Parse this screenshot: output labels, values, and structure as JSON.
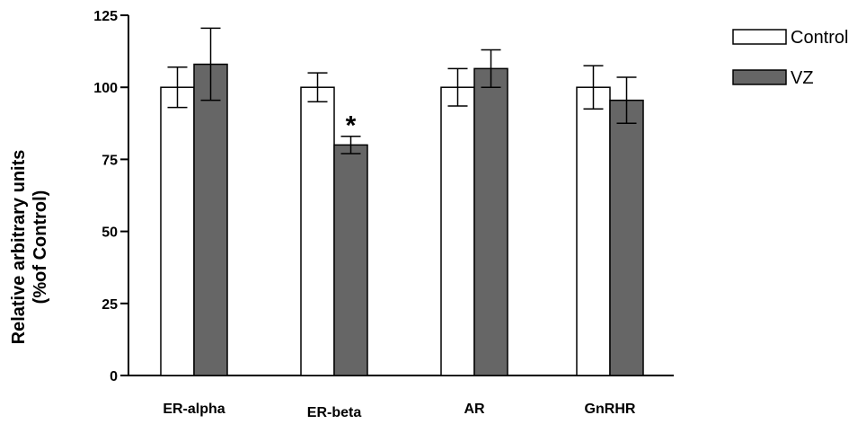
{
  "chart_data": {
    "type": "bar",
    "categories": [
      "ER-alpha",
      "ER-beta",
      "AR",
      "GnRHR"
    ],
    "series": [
      {
        "name": "Control",
        "color": "#ffffff",
        "values": [
          100,
          100,
          100,
          100
        ],
        "errors": [
          7,
          5,
          6.5,
          7.5
        ]
      },
      {
        "name": "VZ",
        "color": "#666666",
        "values": [
          108,
          80,
          106.5,
          95.5
        ],
        "errors": [
          12.5,
          3,
          6.5,
          8
        ]
      }
    ],
    "annotations": [
      {
        "category": "ER-beta",
        "series": "VZ",
        "text": "*"
      }
    ],
    "ylabel_line1": "Relative arbitrary units",
    "ylabel_line2": "(%of Control)",
    "xlabel": "",
    "title": "",
    "ylim": [
      0,
      125
    ],
    "yticks": [
      "0",
      "25",
      "50",
      "75",
      "100",
      "125"
    ],
    "grid": false,
    "legend_position": "top-right"
  }
}
